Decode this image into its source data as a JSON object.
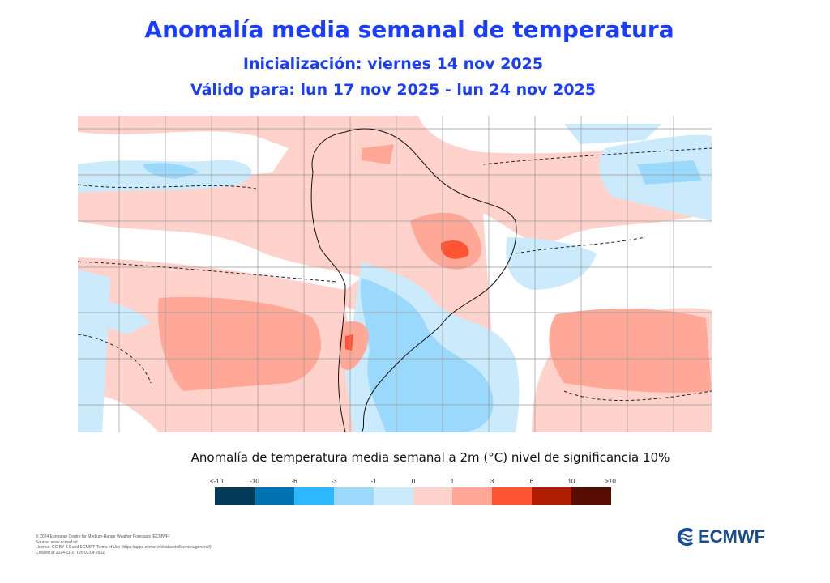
{
  "header": {
    "title": "Anomalía  media semanal de temperatura",
    "init": "Inicialización: viernes 14 nov 2025",
    "valid": "Válido para: lun 17 nov 2025 - lun 24  nov 2025"
  },
  "colorbar": {
    "title": "Anomalía de temperatura media semanal a 2m (°C) nivel de significancia 10%",
    "labels": [
      "<-10",
      "-10",
      "-6",
      "-3",
      "-1",
      "0",
      "1",
      "3",
      "6",
      "10",
      ">10"
    ],
    "colors": [
      "#023a57",
      "#0073b0",
      "#2db8fc",
      "#9bd9fc",
      "#cbebfc",
      "#ffd3cc",
      "#ffa898",
      "#ff5533",
      "#b01c00",
      "#560c00"
    ]
  },
  "footer": {
    "lines": [
      "© 2024 European Centre for Medium-Range Weather Forecasts (ECMWF)",
      "Source: www.ecmwf.int",
      "Licence: CC BY 4.0 and ECMWF Terms of Use (https://apps.ecmwf.int/datasets/licences/general/)",
      "Created at 2024-11-27T20:03:04.263Z"
    ]
  },
  "logo": {
    "text": "ECMWF"
  }
}
